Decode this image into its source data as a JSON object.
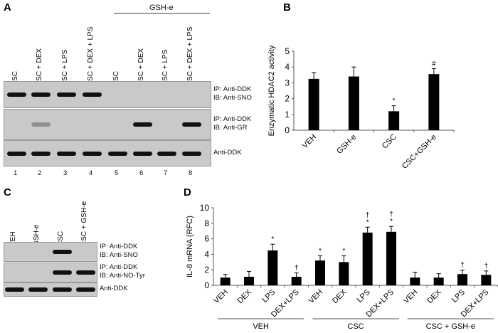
{
  "panelA": {
    "label": "A",
    "group_label": "GSH-e",
    "lanes": [
      "CSC",
      "CSC + DEX",
      "CSC + LPS",
      "CSC + DEX + LPS",
      "CSC",
      "CSC + DEX",
      "CSC + LPS",
      "CSC + DEX + LPS"
    ],
    "lane_numbers": [
      "1",
      "2",
      "3",
      "4",
      "5",
      "6",
      "7",
      "8"
    ],
    "blots": [
      {
        "ip": "IP: Anti-DDK",
        "ib": "IB: Anti-SNO",
        "bands": [
          1,
          1,
          1,
          1,
          0,
          0,
          0,
          0
        ]
      },
      {
        "ip": "IP: Anti-DDK",
        "ib": "IB: Anti-GR",
        "bands": [
          0,
          0.3,
          0,
          0,
          0,
          1,
          0,
          1
        ]
      },
      {
        "ip": "",
        "ib": "Anti-DDK",
        "bands": [
          1,
          1,
          1,
          1,
          1,
          1,
          1,
          1
        ]
      }
    ]
  },
  "panelC": {
    "label": "C",
    "lanes": [
      "VEH",
      "GSH-e",
      "CSC",
      "CSC + GSH-e"
    ],
    "blots": [
      {
        "ip": "IP: Anti-DDK",
        "ib": "IB: Anti-SNO",
        "bands": [
          0,
          0,
          1,
          0
        ]
      },
      {
        "ip": "IP: Anti-DDK",
        "ib": "IB: Anti-NO-Tyr",
        "bands": [
          0,
          0,
          1,
          1
        ]
      },
      {
        "ip": "",
        "ib": "Anti-DDK",
        "bands": [
          1,
          1,
          1,
          1
        ]
      }
    ]
  },
  "panelB": {
    "label": "B"
  },
  "panelD": {
    "label": "D"
  },
  "chart_data": [
    {
      "type": "bar",
      "title": "",
      "ylabel": "Enzymatic HDAC2 activity",
      "xlabel": "",
      "ylim": [
        0,
        5
      ],
      "yticks": [
        "0",
        "1",
        "2",
        "3",
        "4",
        "5"
      ],
      "categories": [
        "VEH",
        "GSH-e",
        "CSC",
        "CSC+GSH-e"
      ],
      "values": [
        3.25,
        3.4,
        1.2,
        3.55
      ],
      "errors": [
        0.4,
        0.6,
        0.35,
        0.35
      ],
      "annotations": [
        "",
        "",
        "*",
        "#"
      ]
    },
    {
      "type": "bar",
      "title": "",
      "ylabel": "IL-8 mRNA (RFC)",
      "xlabel": "",
      "ylim": [
        0,
        10
      ],
      "yticks": [
        "0",
        "2",
        "4",
        "6",
        "8",
        "10"
      ],
      "categories": [
        "VEH",
        "DEX",
        "LPS",
        "DEX+LPS",
        "VEH",
        "DEX",
        "LPS",
        "DEX+LPS",
        "VEH",
        "DEX",
        "LPS",
        "DEX+LPS"
      ],
      "groups": [
        "VEH",
        "CSC",
        "CSC + GSH-e"
      ],
      "values": [
        1.0,
        1.1,
        4.5,
        1.1,
        3.2,
        3.0,
        6.8,
        6.9,
        1.0,
        1.0,
        1.45,
        1.35
      ],
      "errors": [
        0.4,
        0.7,
        0.8,
        0.5,
        0.6,
        0.8,
        0.7,
        0.7,
        0.7,
        0.5,
        0.5,
        0.5
      ],
      "annotations": [
        "",
        "",
        "*",
        "†",
        "*",
        "*",
        "†*",
        "†*",
        "",
        "",
        "†",
        "†"
      ]
    }
  ]
}
